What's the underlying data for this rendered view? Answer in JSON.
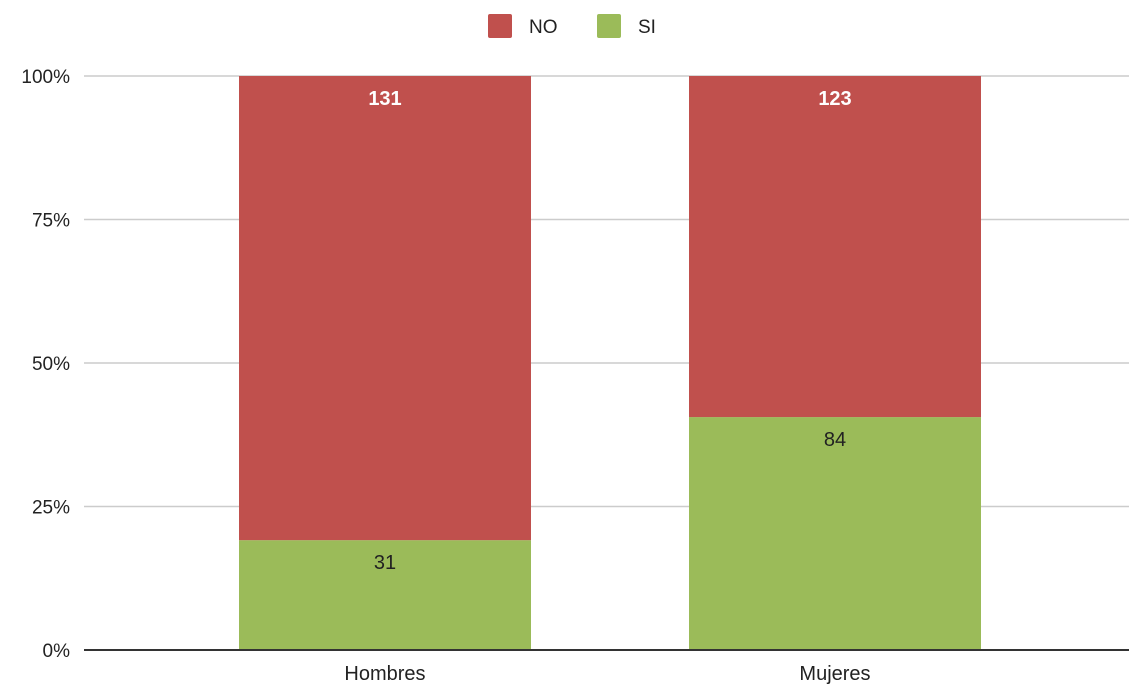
{
  "chart_data": {
    "type": "bar",
    "stacked": "percent",
    "title": "",
    "xlabel": "",
    "ylabel": "",
    "categories": [
      "Hombres",
      "Mujeres"
    ],
    "series": [
      {
        "name": "SI",
        "values": [
          31,
          84
        ],
        "color": "#9bbb59",
        "label_color": "#222222"
      },
      {
        "name": "NO",
        "values": [
          131,
          123
        ],
        "color": "#c0504d",
        "label_color": "#ffffff"
      }
    ],
    "legend_order": [
      "NO",
      "SI"
    ],
    "legend_position": "top-center",
    "ylim": [
      0,
      100
    ],
    "yticks": [
      0,
      25,
      50,
      75,
      100
    ],
    "ytick_labels": [
      "0%",
      "25%",
      "50%",
      "75%",
      "100%"
    ],
    "grid": true,
    "grid_color": "#cccccc",
    "axis_color": "#333333"
  }
}
